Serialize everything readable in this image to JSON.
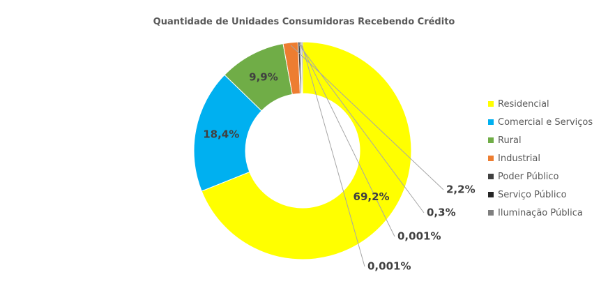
{
  "chart_data": {
    "type": "pie",
    "title": "Quantidade de Unidades Consumidoras Recebendo Crédito",
    "legend_position": "right",
    "slices": [
      {
        "name": "Residencial",
        "value": 69.2,
        "label": "69,2%",
        "color": "#FFFF00"
      },
      {
        "name": "Comercial e Serviços",
        "value": 18.4,
        "label": "18,4%",
        "color": "#00B0F0"
      },
      {
        "name": "Rural",
        "value": 9.9,
        "label": "9,9%",
        "color": "#70AD47"
      },
      {
        "name": "Industrial",
        "value": 2.2,
        "label": "2,2%",
        "color": "#ED7D31"
      },
      {
        "name": "Poder Público",
        "value": 0.3,
        "label": "0,3%",
        "color": "#404040"
      },
      {
        "name": "Serviço Público",
        "value": 0.001,
        "label": "0,001%",
        "color": "#262626"
      },
      {
        "name": "Iluminação Pública",
        "value": 0.001,
        "label": "0,001%",
        "color": "#7F7F7F"
      }
    ]
  }
}
